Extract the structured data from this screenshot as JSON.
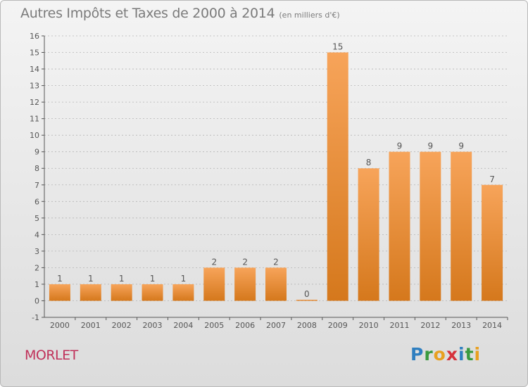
{
  "title": "Autres Impôts et Taxes de 2000 à 2014",
  "unit_note": "(en milliers d'€)",
  "commune": "MORLET",
  "logo": {
    "letters": [
      "P",
      "r",
      "o",
      "x",
      "i",
      "t",
      "i"
    ],
    "colors": [
      "#2f7fc0",
      "#3a9a3f",
      "#e8a020",
      "#d6323c",
      "#2f7fc0",
      "#3a9a3f",
      "#e8a020"
    ]
  },
  "colors": {
    "bar_light": "#f7a45a",
    "bar_dark": "#d5781c",
    "axis": "#555555",
    "grid": "#b5b5b5",
    "text": "#555555"
  },
  "chart_data": {
    "type": "bar",
    "categories": [
      "2000",
      "2001",
      "2002",
      "2003",
      "2004",
      "2005",
      "2006",
      "2007",
      "2008",
      "2009",
      "2010",
      "2011",
      "2012",
      "2013",
      "2014"
    ],
    "values": [
      1,
      1,
      1,
      1,
      1,
      2,
      2,
      2,
      0,
      15,
      8,
      9,
      9,
      9,
      7
    ],
    "data_labels": [
      "1",
      "1",
      "1",
      "1",
      "1",
      "2",
      "2",
      "2",
      "0",
      "15",
      "8",
      "9",
      "9",
      "9",
      "7"
    ],
    "yticks": [
      "-1",
      "0",
      "1",
      "2",
      "3",
      "4",
      "5",
      "6",
      "7",
      "8",
      "9",
      "10",
      "11",
      "12",
      "13",
      "14",
      "15",
      "16"
    ],
    "ylim": [
      -1,
      16
    ],
    "grid": true,
    "legend": "none"
  }
}
